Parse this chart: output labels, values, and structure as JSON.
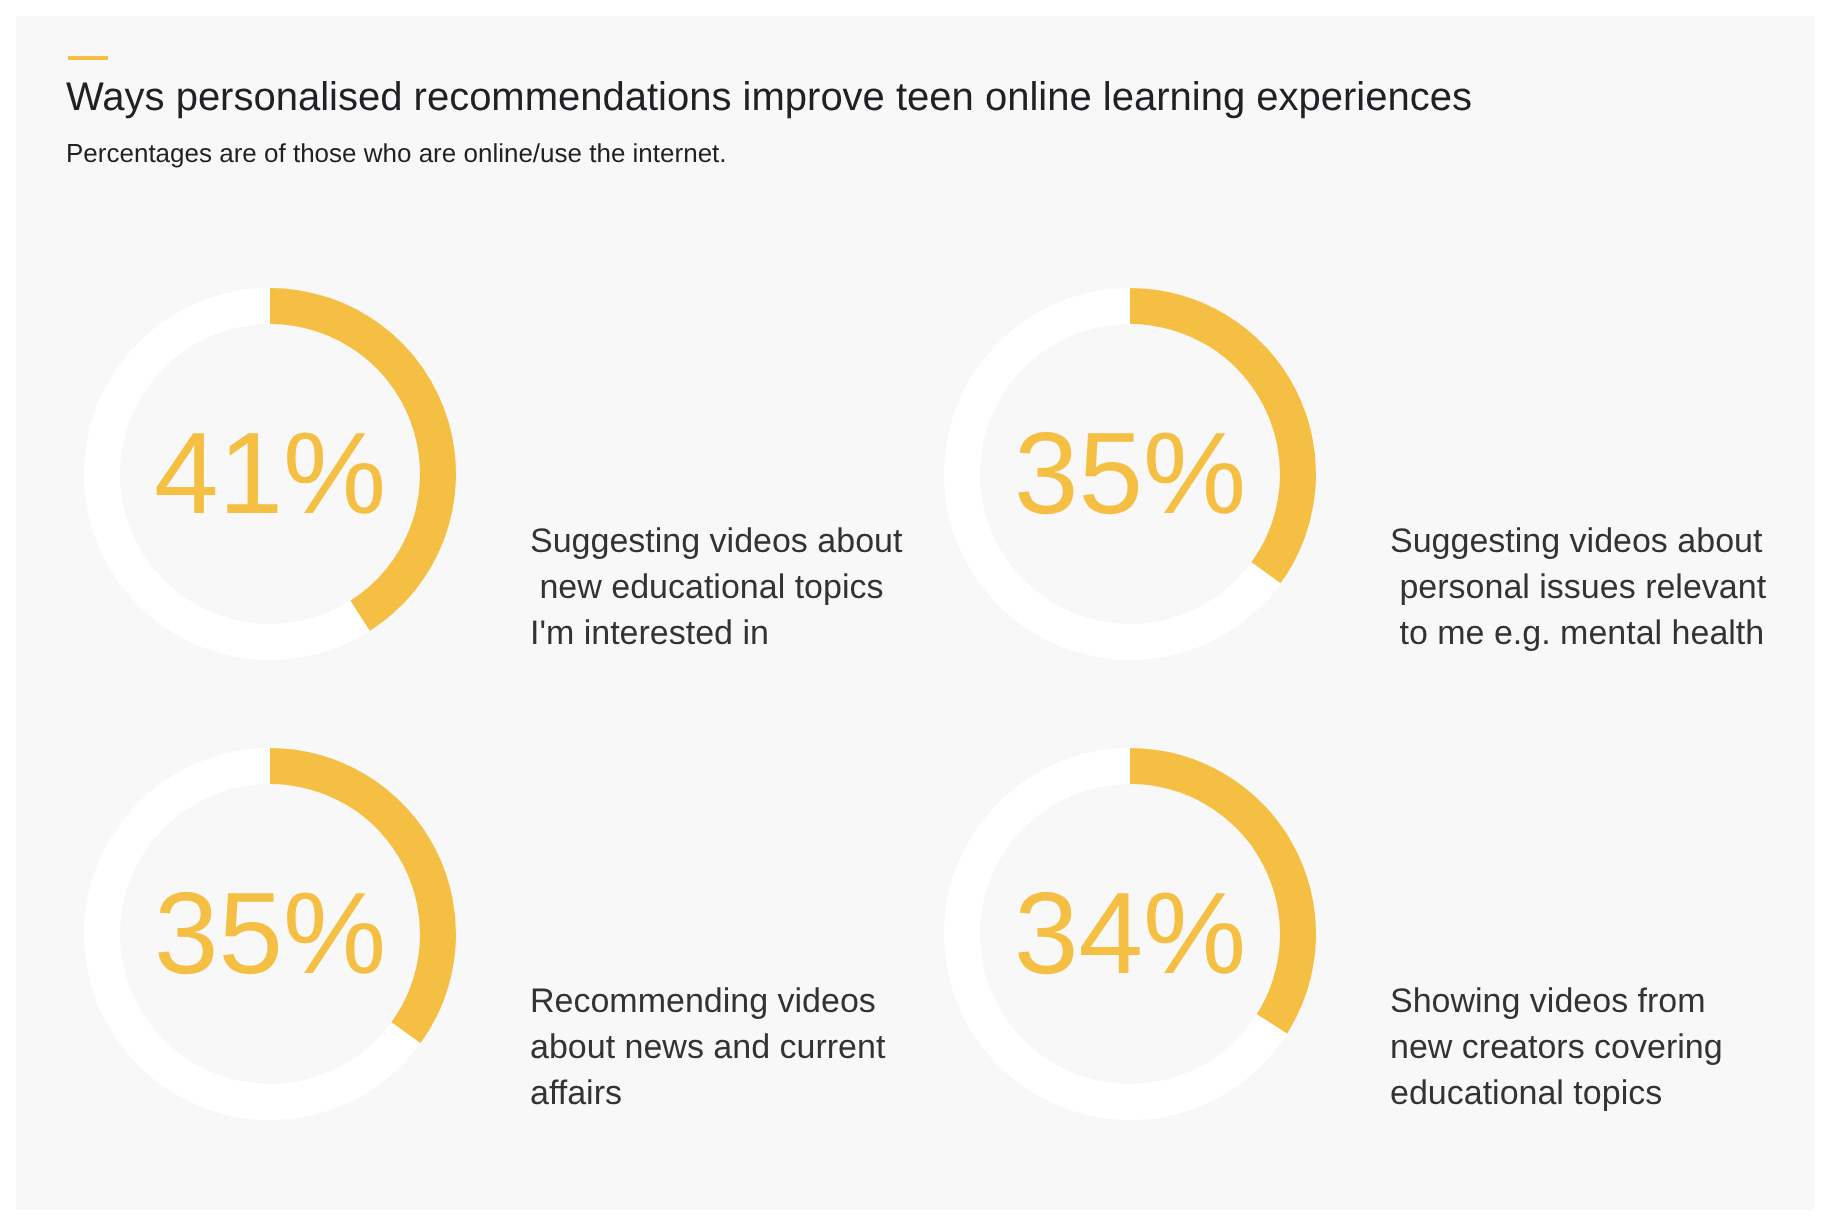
{
  "chart_data": [
    {
      "type": "donut",
      "title": "Ways personalised recommendations improve teen online learning experiences",
      "subtitle": "Percentages are of those who are online/use the internet.",
      "categories": [
        "Suggesting videos about new educational topics I'm interested in",
        null
      ],
      "values": [
        41,
        59
      ],
      "colors": [
        "#f4bf42",
        "#ffffff"
      ],
      "value_labels": [
        "41%",
        null
      ]
    },
    {
      "type": "donut",
      "categories": [
        "Suggesting videos about personal issues relevant to me e.g. mental health",
        null
      ],
      "values": [
        35,
        65
      ],
      "colors": [
        "#f4bf42",
        "#ffffff"
      ],
      "value_labels": [
        "35%",
        null
      ]
    },
    {
      "type": "donut",
      "categories": [
        "Recommending videos about news and current affairs",
        null
      ],
      "values": [
        35,
        65
      ],
      "colors": [
        "#f4bf42",
        "#ffffff"
      ],
      "value_labels": [
        "35%",
        null
      ]
    },
    {
      "type": "donut",
      "categories": [
        "Showing videos from new creators covering educational topics",
        null
      ],
      "values": [
        34,
        66
      ],
      "colors": [
        "#f4bf42",
        "#ffffff"
      ],
      "value_labels": [
        "34%",
        null
      ]
    }
  ]
}
